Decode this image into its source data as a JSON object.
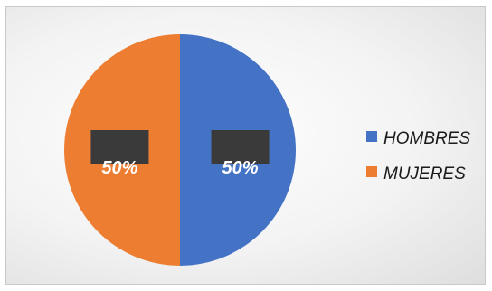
{
  "chart_data": {
    "type": "pie",
    "title": "",
    "categories": [
      "HOMBRES",
      "MUJERES"
    ],
    "values": [
      50,
      50
    ],
    "data_labels": [
      "50%",
      "50%"
    ],
    "colors": [
      "#4472C4",
      "#ED7D31"
    ],
    "legend": {
      "placement": "right",
      "entries": [
        "HOMBRES",
        "MUJERES"
      ]
    },
    "label_box_color": "#3a3a3a"
  }
}
